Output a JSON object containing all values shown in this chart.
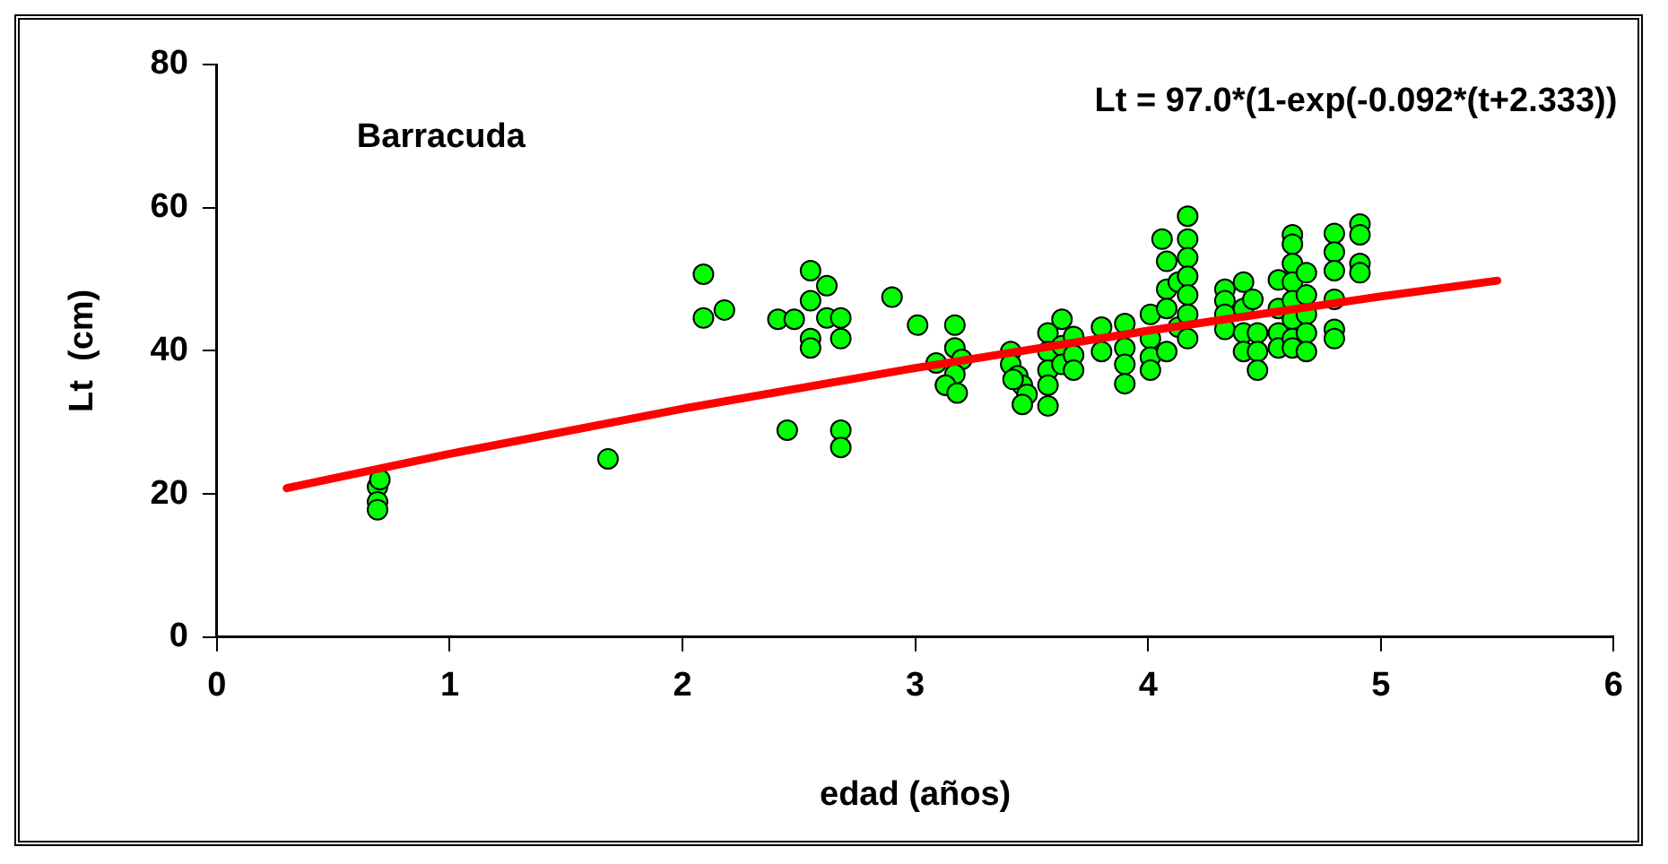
{
  "chart_data": {
    "type": "scatter",
    "xlabel": "edad (años)",
    "ylabel": "Lt  (cm)",
    "annotations": [
      "Barracuda",
      "Lt = 97.0*(1-exp(-0.092*(t+2.333))"
    ],
    "xlim": [
      0,
      6
    ],
    "xticks": [
      0,
      1,
      2,
      3,
      4,
      5,
      6
    ],
    "ylim": [
      0,
      80
    ],
    "yticks": [
      0,
      20,
      40,
      60,
      80
    ],
    "grid": false,
    "legend": false,
    "marker": "circle",
    "series": [
      {
        "color": "#00ff00",
        "x": [
          0.69,
          0.69,
          0.69,
          0.7,
          1.68,
          2.09,
          2.09,
          2.18,
          2.41,
          2.48,
          2.45,
          2.55,
          2.62,
          2.55,
          2.55,
          2.55,
          2.62,
          2.68,
          2.68,
          2.68,
          2.68,
          2.9,
          3.01,
          3.09,
          3.13,
          3.17,
          3.17,
          3.2,
          3.17,
          3.13,
          3.18,
          3.41,
          3.41,
          3.44,
          3.46,
          3.48,
          3.46,
          3.42,
          3.57,
          3.57,
          3.57,
          3.57,
          3.57,
          3.63,
          3.63,
          3.63,
          3.68,
          3.68,
          3.68,
          3.8,
          3.8,
          3.9,
          3.9,
          3.9,
          3.9,
          4.01,
          4.01,
          4.01,
          4.01,
          4.06,
          4.08,
          4.08,
          4.08,
          4.08,
          4.13,
          4.13,
          4.17,
          4.17,
          4.17,
          4.17,
          4.17,
          4.17,
          4.17,
          4.33,
          4.33,
          4.33,
          4.33,
          4.41,
          4.41,
          4.41,
          4.41,
          4.45,
          4.47,
          4.47,
          4.47,
          4.56,
          4.56,
          4.56,
          4.56,
          4.62,
          4.62,
          4.62,
          4.62,
          4.62,
          4.62,
          4.62,
          4.62,
          4.68,
          4.68,
          4.68,
          4.68,
          4.68,
          4.8,
          4.8,
          4.8,
          4.8,
          4.8,
          4.8,
          4.91,
          4.91,
          4.91,
          4.91
        ],
        "values": [
          21,
          18.9,
          17.8,
          22,
          24.9,
          50.7,
          44.6,
          45.7,
          44.4,
          44.4,
          28.9,
          51.2,
          49.1,
          47,
          41.7,
          40.4,
          44.6,
          44.6,
          41.7,
          28.9,
          26.5,
          47.5,
          43.6,
          38.3,
          35.2,
          43.6,
          40.4,
          38.8,
          36.7,
          35.2,
          34.1,
          39.9,
          38.1,
          36.5,
          35.2,
          33.9,
          32.5,
          36,
          32.3,
          42.5,
          39.9,
          37.3,
          35.2,
          44.4,
          40.7,
          38.1,
          42,
          39.4,
          37.3,
          43.3,
          39.9,
          43.8,
          40.4,
          38.1,
          35.4,
          45.1,
          41.7,
          39.1,
          37.3,
          55.6,
          52.5,
          48.6,
          45.9,
          39.9,
          49.6,
          43.3,
          58.8,
          55.6,
          53,
          50.4,
          47.8,
          45.1,
          41.7,
          48.6,
          47,
          45.1,
          43,
          49.6,
          45.9,
          42.5,
          39.9,
          47.2,
          42.5,
          39.9,
          37.3,
          49.9,
          45.9,
          42.5,
          40.4,
          56.2,
          54.9,
          52.2,
          49.6,
          47,
          44.4,
          41.7,
          40.4,
          50.9,
          47.8,
          45.1,
          42.5,
          39.9,
          56.4,
          53.8,
          51.2,
          47.2,
          43,
          41.7,
          57.7,
          56.2,
          52.2,
          50.9
        ]
      },
      {
        "type": "line",
        "color": "#ff0000",
        "marker": "none",
        "x": [
          0.3,
          1,
          2,
          3,
          4,
          5,
          5.5
        ],
        "values": [
          20.8,
          25.6,
          31.9,
          37.6,
          42.8,
          47.6,
          49.8
        ]
      }
    ]
  }
}
